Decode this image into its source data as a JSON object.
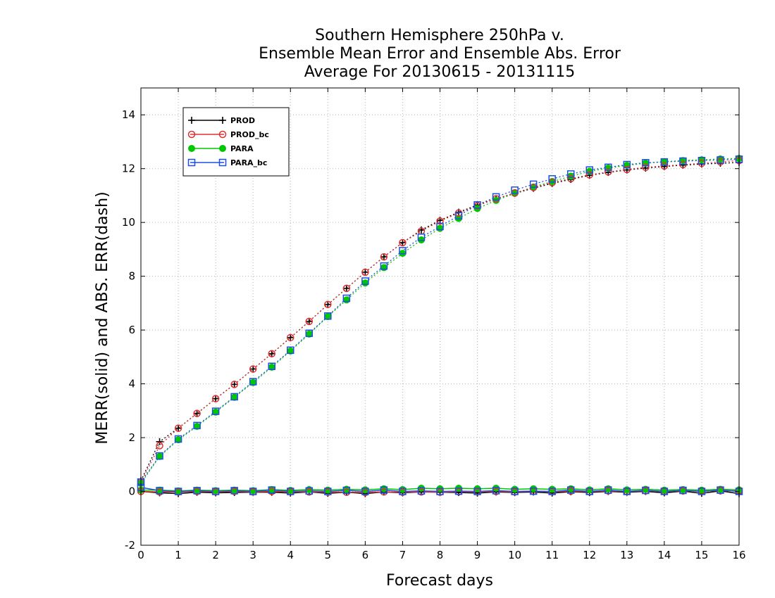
{
  "chart_data": {
    "type": "line",
    "title": [
      "Southern Hemisphere 250hPa v.",
      "Ensemble Mean Error and Ensemble Abs. Error",
      "Average For 20130615 - 20131115"
    ],
    "xlabel": "Forecast days",
    "ylabel": "MERR(solid) and ABS. ERR(dash)",
    "xlim": [
      0,
      16
    ],
    "ylim": [
      -2,
      15
    ],
    "xticks": [
      "0",
      "1",
      "2",
      "3",
      "4",
      "5",
      "6",
      "7",
      "8",
      "9",
      "10",
      "11",
      "12",
      "13",
      "14",
      "15",
      "16"
    ],
    "yticks": [
      "-2",
      "0",
      "2",
      "4",
      "6",
      "8",
      "10",
      "12",
      "14"
    ],
    "grid": true,
    "legend_position": "top-left",
    "x": [
      0,
      0.5,
      1,
      1.5,
      2,
      2.5,
      3,
      3.5,
      4,
      4.5,
      5,
      5.5,
      6,
      6.5,
      7,
      7.5,
      8,
      8.5,
      9,
      9.5,
      10,
      10.5,
      11,
      11.5,
      12,
      12.5,
      13,
      13.5,
      14,
      14.5,
      15,
      15.5,
      16
    ],
    "series": [
      {
        "name": "PROD",
        "color": "#000000",
        "marker": "plus",
        "abs_err": [
          0.4,
          1.85,
          2.35,
          2.9,
          3.45,
          3.98,
          4.55,
          5.12,
          5.72,
          6.32,
          6.95,
          7.55,
          8.15,
          8.72,
          9.25,
          9.72,
          10.08,
          10.38,
          10.65,
          10.88,
          11.08,
          11.27,
          11.45,
          11.6,
          11.75,
          11.86,
          11.95,
          12.02,
          12.08,
          12.13,
          12.17,
          12.2,
          12.23
        ],
        "merr": [
          0,
          -0.05,
          -0.08,
          -0.03,
          -0.05,
          -0.04,
          -0.03,
          -0.03,
          -0.06,
          -0.02,
          -0.07,
          -0.03,
          -0.08,
          -0.02,
          -0.05,
          -0.02,
          -0.03,
          -0.04,
          -0.06,
          -0.02,
          -0.04,
          -0.02,
          -0.06,
          -0.01,
          -0.04,
          0,
          -0.03,
          0,
          -0.05,
          0.01,
          -0.07,
          0.02,
          -0.08
        ]
      },
      {
        "name": "PROD_bc",
        "color": "#e03030",
        "marker": "circle",
        "abs_err": [
          0.35,
          1.7,
          2.35,
          2.9,
          3.45,
          3.98,
          4.55,
          5.12,
          5.72,
          6.32,
          6.95,
          7.55,
          8.15,
          8.72,
          9.25,
          9.68,
          10.05,
          10.35,
          10.62,
          10.88,
          11.1,
          11.3,
          11.48,
          11.63,
          11.77,
          11.88,
          11.97,
          12.05,
          12.1,
          12.15,
          12.2,
          12.25,
          12.3
        ],
        "merr": [
          0,
          -0.02,
          -0.02,
          0,
          -0.02,
          0,
          -0.02,
          0,
          -0.02,
          -0.02,
          -0.03,
          -0.03,
          -0.04,
          -0.02,
          -0.03,
          -0.02,
          -0.03,
          -0.01,
          -0.02,
          0,
          -0.02,
          0.01,
          -0.01,
          0.01,
          -0.01,
          0.02,
          0,
          0.02,
          0,
          0.02,
          0.01,
          0.03,
          0.02
        ]
      },
      {
        "name": "PARA",
        "color": "#00c800",
        "marker": "dot",
        "abs_err": [
          0.3,
          1.3,
          1.92,
          2.42,
          2.95,
          3.5,
          4.05,
          4.62,
          5.22,
          5.85,
          6.5,
          7.12,
          7.75,
          8.32,
          8.85,
          9.35,
          9.78,
          10.15,
          10.52,
          10.82,
          11.08,
          11.32,
          11.52,
          11.72,
          11.9,
          12.02,
          12.12,
          12.2,
          12.26,
          12.3,
          12.33,
          12.36,
          12.38
        ],
        "merr": [
          0.05,
          0.05,
          0.02,
          0.05,
          0.03,
          0.05,
          0.03,
          0.07,
          0.04,
          0.07,
          0.05,
          0.08,
          0.06,
          0.1,
          0.07,
          0.12,
          0.1,
          0.12,
          0.1,
          0.12,
          0.08,
          0.1,
          0.08,
          0.1,
          0.06,
          0.1,
          0.06,
          0.08,
          0.05,
          0.07,
          0.05,
          0.08,
          0.06
        ]
      },
      {
        "name": "PARA_bc",
        "color": "#1e4fe0",
        "marker": "square",
        "abs_err": [
          0.35,
          1.32,
          1.95,
          2.45,
          2.98,
          3.52,
          4.08,
          4.65,
          5.25,
          5.88,
          6.52,
          7.18,
          7.82,
          8.38,
          8.95,
          9.45,
          9.85,
          10.25,
          10.65,
          10.95,
          11.2,
          11.42,
          11.62,
          11.8,
          11.95,
          12.05,
          12.15,
          12.22,
          12.25,
          12.28,
          12.3,
          12.32,
          12.35
        ],
        "merr": [
          0.15,
          0.03,
          0,
          0.03,
          0,
          0.03,
          0,
          0.05,
          0,
          0.02,
          0,
          0.04,
          0,
          0.05,
          0,
          0.02,
          0,
          0.01,
          0,
          0.03,
          0,
          0.01,
          0,
          0.05,
          0,
          0.05,
          0,
          0.04,
          0,
          0.04,
          0,
          0.05,
          0
        ]
      }
    ]
  }
}
